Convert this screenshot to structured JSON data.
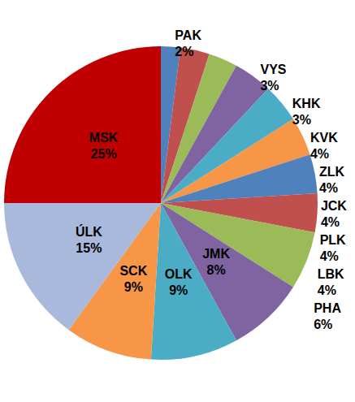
{
  "chart_data": {
    "type": "pie",
    "categories": [
      "PAK",
      "VYS",
      "KHK",
      "KVK",
      "ZLK",
      "JCK",
      "PLK",
      "LBK",
      "PHA",
      "JMK",
      "OLK",
      "SCK",
      "ÚLK",
      "MSK"
    ],
    "values": [
      2,
      3,
      3,
      4,
      4,
      4,
      4,
      4,
      6,
      8,
      9,
      9,
      15,
      25
    ],
    "value_labels": [
      "2%",
      "3%",
      "3%",
      "4%",
      "4%",
      "4%",
      "4%",
      "4%",
      "6%",
      "8%",
      "9%",
      "9%",
      "15%",
      "25%"
    ],
    "colors": [
      "#4F81BD",
      "#C0504D",
      "#9BBB59",
      "#8064A2",
      "#4BACC6",
      "#F79646",
      "#4F81BD",
      "#C0504D",
      "#9BBB59",
      "#8064A2",
      "#4BACC6",
      "#F79646",
      "#A9B9DB",
      "#C00000"
    ],
    "data_labels": true
  }
}
